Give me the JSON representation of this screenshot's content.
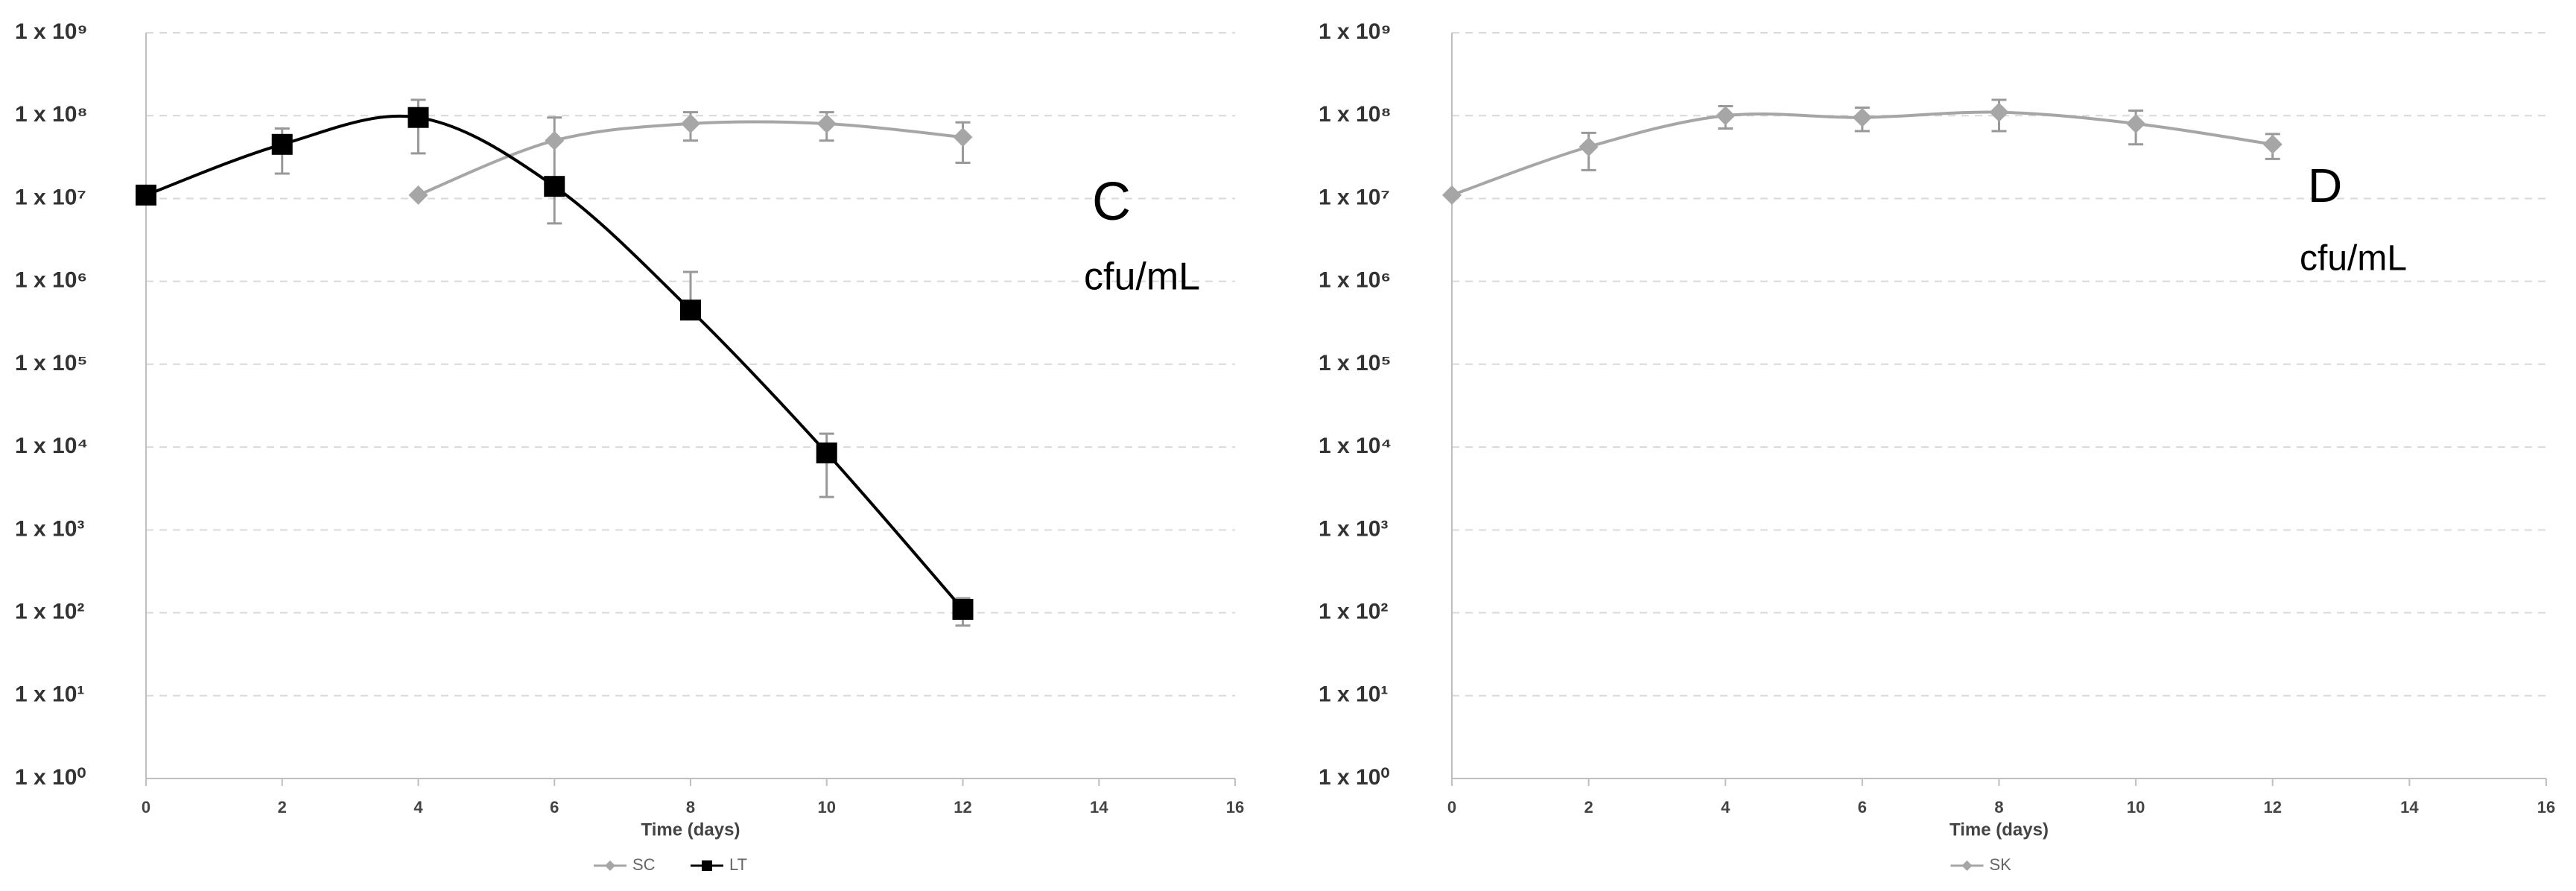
{
  "chart_data": [
    {
      "type": "line",
      "log_scale": true,
      "grid": true,
      "legend": "bottom",
      "x_label": "Time (days)",
      "annotations": [
        "C",
        "cfu/mL"
      ],
      "xlim": [
        0,
        16
      ],
      "xticks": [
        0,
        2,
        4,
        6,
        8,
        10,
        12,
        14,
        16
      ],
      "ylim": [
        1,
        1000000000
      ],
      "yticks": [
        {
          "value": 1,
          "label": "1 x 10⁰"
        },
        {
          "value": 10,
          "label": "1 x 10¹"
        },
        {
          "value": 100,
          "label": "1 x 10²"
        },
        {
          "value": 1000,
          "label": "1 x 10³"
        },
        {
          "value": 10000,
          "label": "1 x 10⁴"
        },
        {
          "value": 100000,
          "label": "1 x 10⁵"
        },
        {
          "value": 1000000,
          "label": "1 x 10⁶"
        },
        {
          "value": 10000000,
          "label": "1 x 10⁷"
        },
        {
          "value": 100000000,
          "label": "1 x 10⁸"
        },
        {
          "value": 1000000000,
          "label": "1 x 10⁹"
        }
      ],
      "series": [
        {
          "name": "SC",
          "color": "#a6a6a6",
          "marker": "diamond",
          "x": [
            4,
            6,
            8,
            10,
            12
          ],
          "values": [
            11000000,
            50000000,
            80000000,
            80000000,
            55000000
          ],
          "errors": [
            0,
            45000000,
            30000000,
            30000000,
            28000000
          ]
        },
        {
          "name": "LT",
          "color": "#000000",
          "marker": "square",
          "x": [
            0,
            2,
            4,
            6,
            8,
            10,
            12
          ],
          "values": [
            11000000,
            45000000,
            95000000,
            14000000,
            450000,
            8500,
            110
          ],
          "errors": [
            0,
            25000000,
            60000000,
            0,
            850000,
            6000,
            40
          ]
        }
      ]
    },
    {
      "type": "line",
      "log_scale": true,
      "grid": true,
      "legend": "bottom",
      "x_label": "Time (days)",
      "annotations": [
        "D",
        "cfu/mL"
      ],
      "xlim": [
        0,
        16
      ],
      "xticks": [
        0,
        2,
        4,
        6,
        8,
        10,
        12,
        14,
        16
      ],
      "ylim": [
        1,
        1000000000
      ],
      "yticks": [
        {
          "value": 1,
          "label": "1 x 10⁰"
        },
        {
          "value": 10,
          "label": "1 x 10¹"
        },
        {
          "value": 100,
          "label": "1 x 10²"
        },
        {
          "value": 1000,
          "label": "1 x 10³"
        },
        {
          "value": 10000,
          "label": "1 x 10⁴"
        },
        {
          "value": 100000,
          "label": "1 x 10⁵"
        },
        {
          "value": 1000000,
          "label": "1 x 10⁶"
        },
        {
          "value": 10000000,
          "label": "1 x 10⁷"
        },
        {
          "value": 100000000,
          "label": "1 x 10⁸"
        },
        {
          "value": 1000000000,
          "label": "1 x 10⁹"
        }
      ],
      "series": [
        {
          "name": "SK",
          "color": "#a6a6a6",
          "marker": "diamond",
          "x": [
            0,
            2,
            4,
            6,
            8,
            10,
            12
          ],
          "values": [
            11000000,
            42000000,
            100000000,
            95000000,
            110000000,
            80000000,
            45000000
          ],
          "errors": [
            0,
            20000000,
            30000000,
            30000000,
            45000000,
            35000000,
            15000000
          ]
        }
      ]
    }
  ]
}
